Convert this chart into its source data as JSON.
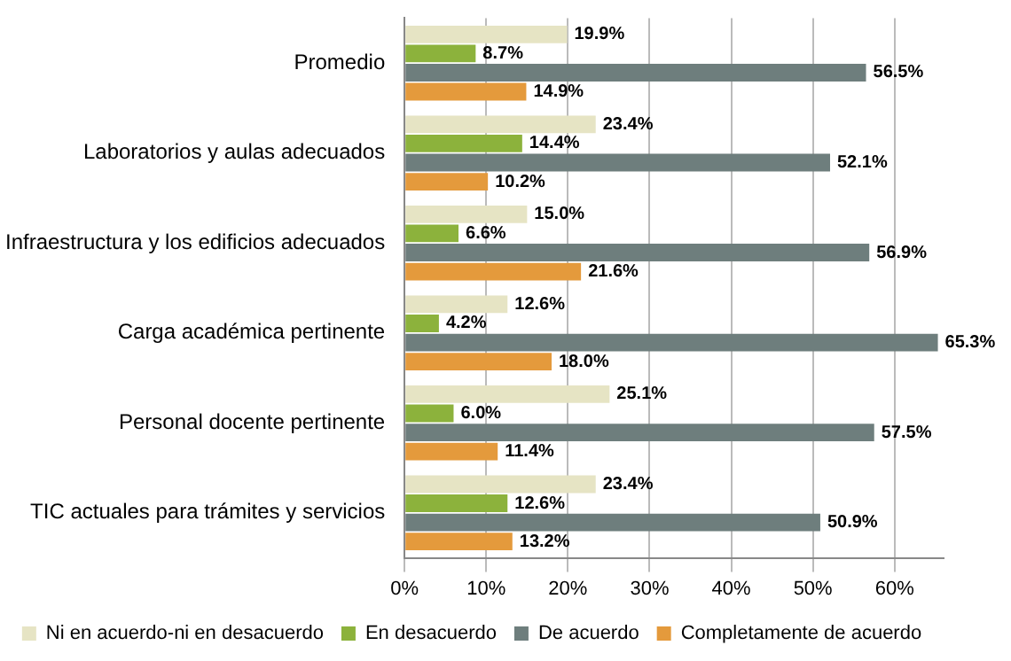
{
  "chart_data": {
    "type": "bar",
    "orientation": "horizontal",
    "categories": [
      "Promedio",
      "Laboratorios y aulas adecuados",
      "Infraestructura y los edificios adecuados",
      "Carga académica pertinente",
      "Personal docente pertinente",
      "TIC actuales para trámites y servicios"
    ],
    "series": [
      {
        "name": "Ni en acuerdo-ni en desacuerdo",
        "color": "#e6e4c4",
        "values": [
          19.9,
          23.4,
          15.0,
          12.6,
          25.1,
          23.4
        ],
        "value_labels": [
          "19.9%",
          "23.4%",
          "15.0%",
          "12.6%",
          "25.1%",
          "23.4%"
        ]
      },
      {
        "name": "En desacuerdo",
        "color": "#8cb23c",
        "values": [
          8.7,
          14.4,
          6.6,
          4.2,
          6.0,
          12.6
        ],
        "value_labels": [
          "8.7%",
          "14.4%",
          "6.6%",
          "4.2%",
          "6.0%",
          "12.6%"
        ]
      },
      {
        "name": "De acuerdo",
        "color": "#6e7e7d",
        "values": [
          56.5,
          52.1,
          56.9,
          65.3,
          57.5,
          50.9
        ],
        "value_labels": [
          "56.5%",
          "52.1%",
          "56.9%",
          "65.3%",
          "57.5%",
          "50.9%"
        ]
      },
      {
        "name": "Completamente de acuerdo",
        "color": "#e49a3c",
        "values": [
          14.9,
          10.2,
          21.6,
          18.0,
          11.4,
          13.2
        ],
        "value_labels": [
          "14.9%",
          "10.2%",
          "21.6%",
          "18.0%",
          "11.4%",
          "13.2%"
        ]
      }
    ],
    "xlim": [
      0,
      66
    ],
    "xticks": [
      {
        "value": 0,
        "label": "0%"
      },
      {
        "value": 10,
        "label": "10%"
      },
      {
        "value": 20,
        "label": "20%"
      },
      {
        "value": 30,
        "label": "30%"
      },
      {
        "value": 40,
        "label": "40%"
      },
      {
        "value": 50,
        "label": "50%"
      },
      {
        "value": 60,
        "label": "60%"
      }
    ],
    "grid": "x",
    "legend": "bottom"
  }
}
